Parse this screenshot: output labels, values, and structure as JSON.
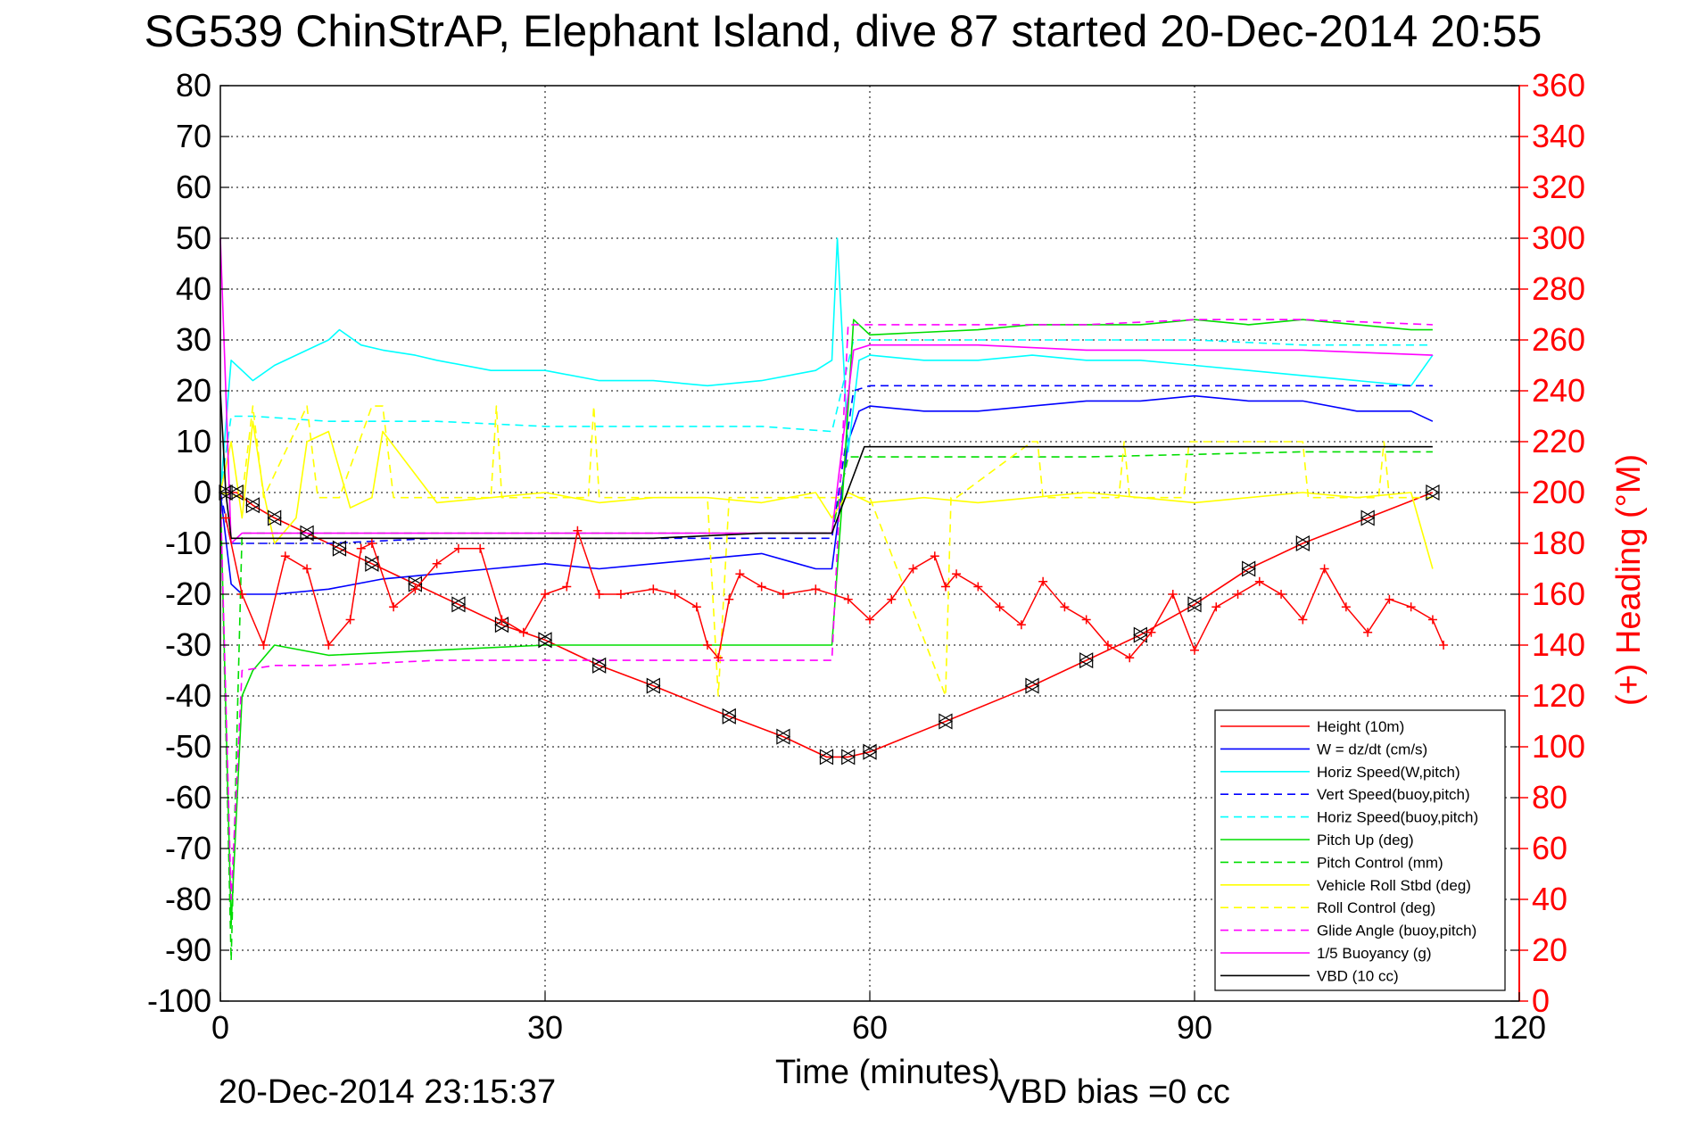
{
  "chart_data": {
    "type": "line",
    "title": "SG539 ChinStrAP, Elephant Island, dive 87 started 20-Dec-2014 20:55",
    "xlabel": "Time (minutes)",
    "ylabel": "",
    "y2label": "(+) Heading (°M)",
    "xlim": [
      0,
      120
    ],
    "ylim": [
      -100,
      80
    ],
    "y2lim": [
      0,
      360
    ],
    "xticks": [
      0,
      30,
      60,
      90,
      120
    ],
    "yticks": [
      80,
      70,
      60,
      50,
      40,
      30,
      20,
      10,
      0,
      -10,
      -20,
      -30,
      -40,
      -50,
      -60,
      -70,
      -80,
      -90,
      -100
    ],
    "y2ticks": [
      360,
      340,
      320,
      300,
      280,
      260,
      240,
      220,
      200,
      180,
      160,
      140,
      120,
      100,
      80,
      60,
      40,
      20,
      0
    ],
    "grid": true,
    "legend_position": "bottom-right",
    "footer_left": "20-Dec-2014 23:15:37",
    "footer_right": "VBD bias =0 cc",
    "series": [
      {
        "name": "Height (10m)",
        "color": "#ff0000",
        "style": "solid",
        "x": [
          0.5,
          1.5,
          3,
          5,
          8,
          11,
          14,
          18,
          22,
          26,
          30,
          35,
          40,
          47,
          52,
          56,
          58,
          60,
          67,
          75,
          80,
          85,
          90,
          95,
          100,
          106,
          112
        ],
        "y": [
          0,
          0,
          -2.5,
          -5,
          -8,
          -11,
          -14,
          -18,
          -22,
          -26,
          -29,
          -34,
          -38,
          -44,
          -48,
          -52,
          -52,
          -51,
          -45,
          -38,
          -33,
          -28,
          -22,
          -15,
          -10,
          -5,
          0
        ]
      },
      {
        "name": "W = dz/dt (cm/s)",
        "color": "#0000ff",
        "style": "solid",
        "x": [
          0,
          1,
          2,
          5,
          10,
          15,
          20,
          25,
          30,
          35,
          40,
          45,
          50,
          55,
          56.5,
          58,
          59,
          60,
          65,
          70,
          75,
          80,
          85,
          90,
          95,
          100,
          105,
          110,
          112
        ],
        "y": [
          0,
          -18,
          -20,
          -20,
          -19,
          -17,
          -16,
          -15,
          -14,
          -15,
          -14,
          -13,
          -12,
          -15,
          -15,
          10,
          16,
          17,
          16,
          16,
          17,
          18,
          18,
          19,
          18,
          18,
          16,
          16,
          14
        ]
      },
      {
        "name": "Horiz Speed(W,pitch)",
        "color": "#00ffff",
        "style": "solid",
        "x": [
          0,
          1,
          2,
          3,
          5,
          8,
          10,
          11,
          13,
          15,
          18,
          20,
          25,
          30,
          35,
          40,
          45,
          50,
          55,
          56.5,
          57,
          58,
          59,
          60,
          65,
          70,
          75,
          80,
          85,
          90,
          95,
          100,
          105,
          110,
          112
        ],
        "y": [
          0,
          26,
          24,
          22,
          25,
          28,
          30,
          32,
          29,
          28,
          27,
          26,
          24,
          24,
          22,
          22,
          21,
          22,
          24,
          26,
          50,
          8,
          26,
          27,
          26,
          26,
          27,
          26,
          26,
          25,
          24,
          23,
          22,
          21,
          27
        ]
      },
      {
        "name": "Vert Speed(buoy,pitch)",
        "color": "#0000ff",
        "style": "dashed",
        "x": [
          0,
          1,
          3,
          10,
          20,
          30,
          40,
          50,
          56.5,
          58.5,
          60,
          70,
          80,
          90,
          100,
          112
        ],
        "y": [
          0,
          -10,
          -10,
          -10,
          -9,
          -9,
          -9,
          -9,
          -9,
          20,
          21,
          21,
          21,
          21,
          21,
          21
        ]
      },
      {
        "name": "Horiz Speed(buoy,pitch)",
        "color": "#00ffff",
        "style": "dashed",
        "x": [
          0,
          1,
          3,
          10,
          20,
          30,
          40,
          50,
          56.5,
          58.5,
          60,
          70,
          80,
          90,
          100,
          112
        ],
        "y": [
          0,
          15,
          15,
          14,
          14,
          13,
          13,
          13,
          12,
          30,
          30,
          30,
          30,
          30,
          29,
          29
        ]
      },
      {
        "name": "Pitch Up (deg)",
        "color": "#00dd00",
        "style": "solid",
        "x": [
          0,
          1,
          2,
          3,
          5,
          10,
          20,
          30,
          40,
          50,
          56.5,
          57.5,
          58.5,
          60,
          70,
          75,
          80,
          85,
          90,
          95,
          100,
          105,
          110,
          112
        ],
        "y": [
          0,
          -85,
          -40,
          -35,
          -30,
          -32,
          -31,
          -30,
          -30,
          -30,
          -30,
          0,
          34,
          31,
          32,
          33,
          33,
          33,
          34,
          33,
          34,
          33,
          32,
          32
        ]
      },
      {
        "name": "Pitch Control (mm)",
        "color": "#00dd00",
        "style": "dashed",
        "x": [
          0,
          1,
          2,
          5,
          20,
          40,
          56.5,
          58,
          60,
          80,
          100,
          112
        ],
        "y": [
          0,
          -92,
          -8,
          -8,
          -8,
          -8,
          -8,
          7,
          7,
          7,
          8,
          8
        ]
      },
      {
        "name": "Vehicle Roll Stbd (deg)",
        "color": "#ffff00",
        "style": "solid",
        "x": [
          0,
          1,
          2,
          3,
          4,
          5,
          7,
          8,
          10,
          12,
          14,
          15,
          20,
          25,
          30,
          35,
          40,
          45,
          50,
          55,
          56.5,
          58,
          60,
          65,
          70,
          75,
          80,
          85,
          90,
          95,
          100,
          105,
          110,
          112
        ],
        "y": [
          0,
          10,
          -5,
          14,
          0,
          -10,
          -5,
          10,
          12,
          -3,
          -1,
          12,
          -2,
          -1,
          0,
          -2,
          -1,
          -1,
          -2,
          0,
          -5,
          0,
          -2,
          -1,
          -2,
          -1,
          0,
          -1,
          -2,
          -1,
          0,
          -1,
          0,
          -15
        ]
      },
      {
        "name": "Roll Control (deg)",
        "color": "#ffff00",
        "style": "dashed",
        "x": [
          0,
          2,
          3,
          4,
          8,
          9,
          11,
          14,
          15,
          16,
          25,
          25.5,
          26,
          34,
          34.5,
          35,
          45,
          46,
          47,
          48,
          56,
          60,
          67,
          67.5,
          68,
          75,
          75.5,
          76,
          83,
          83.5,
          84,
          89,
          89.5,
          90,
          100,
          100.5,
          101,
          107,
          107.5,
          108,
          112
        ],
        "y": [
          0,
          -1,
          17,
          -1,
          17,
          -1,
          -1,
          17,
          17,
          -1,
          -1,
          17,
          -1,
          -1,
          17,
          -1,
          -1,
          -40,
          -1,
          -1,
          -1,
          -1,
          -40,
          -1,
          -1,
          10,
          10,
          -1,
          -1,
          10,
          -1,
          -1,
          10,
          10,
          10,
          -1,
          -1,
          -1,
          10,
          -1,
          -1
        ]
      },
      {
        "name": "Glide Angle (buoy,pitch)",
        "color": "#ff00ff",
        "style": "dashed",
        "x": [
          0,
          1,
          2,
          5,
          10,
          20,
          30,
          40,
          50,
          56.5,
          58,
          60,
          70,
          80,
          90,
          100,
          112
        ],
        "y": [
          0,
          -80,
          -35,
          -34,
          -34,
          -33,
          -33,
          -33,
          -33,
          -33,
          33,
          33,
          33,
          33,
          34,
          34,
          33
        ]
      },
      {
        "name": "1/5 Buoyancy (g)",
        "color": "#ff00ff",
        "style": "solid",
        "x": [
          0,
          0.5,
          1,
          2,
          10,
          20,
          30,
          40,
          50,
          56.5,
          58.5,
          60,
          70,
          80,
          90,
          100,
          112
        ],
        "y": [
          50,
          20,
          -10,
          -8,
          -8,
          -8,
          -8,
          -8,
          -8,
          -8,
          28,
          29,
          29,
          28,
          28,
          28,
          27
        ]
      },
      {
        "name": "VBD (10 cc)",
        "color": "#000000",
        "style": "solid",
        "x": [
          0,
          0.5,
          1,
          2,
          10,
          20,
          30,
          40,
          50,
          56.5,
          59.5,
          60,
          70,
          80,
          90,
          100,
          112
        ],
        "y": [
          20,
          0,
          -9,
          -9,
          -9,
          -9,
          -9,
          -9,
          -8,
          -8,
          9,
          9,
          9,
          9,
          9,
          9,
          9
        ]
      }
    ],
    "heading": {
      "name": "(+) Heading",
      "color": "#ff0000",
      "marker": "+",
      "axis": "right",
      "x": [
        0.5,
        2,
        4,
        6,
        8,
        10,
        12,
        13,
        14,
        16,
        18,
        20,
        22,
        24,
        26,
        28,
        30,
        32,
        33,
        35,
        37,
        40,
        42,
        44,
        45,
        46,
        47,
        48,
        50,
        52,
        55,
        58,
        60,
        62,
        64,
        66,
        67,
        68,
        70,
        72,
        74,
        76,
        78,
        80,
        82,
        84,
        86,
        88,
        90,
        92,
        94,
        96,
        98,
        100,
        102,
        104,
        106,
        108,
        110,
        112,
        113
      ],
      "y": [
        190,
        160,
        140,
        175,
        170,
        140,
        150,
        178,
        180,
        155,
        162,
        172,
        178,
        178,
        150,
        145,
        160,
        163,
        185,
        160,
        160,
        162,
        160,
        155,
        140,
        135,
        158,
        168,
        163,
        160,
        162,
        158,
        150,
        158,
        170,
        175,
        163,
        168,
        163,
        155,
        148,
        165,
        155,
        150,
        140,
        135,
        145,
        160,
        138,
        155,
        160,
        165,
        160,
        150,
        170,
        155,
        145,
        158,
        155,
        150,
        140
      ]
    }
  }
}
